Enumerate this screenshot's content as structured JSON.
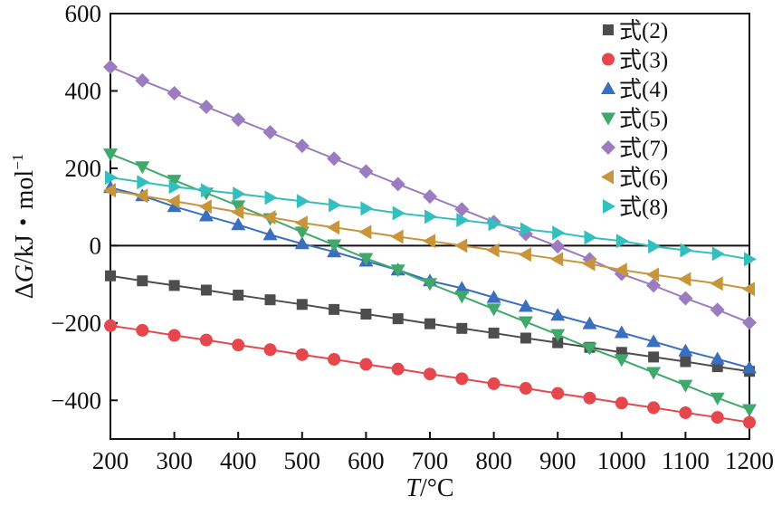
{
  "chart_data": {
    "type": "line",
    "xlabel_italic": "T",
    "xlabel_rest": "/°C",
    "ylabel_prefix": "Δ",
    "ylabel_italic": "G",
    "ylabel_rest": "/kJ・mol",
    "ylabel_sup": "−1",
    "xlim": [
      200,
      1200
    ],
    "ylim": [
      -500,
      600
    ],
    "xticks": [
      200,
      300,
      400,
      500,
      600,
      700,
      800,
      900,
      1000,
      1100,
      1200
    ],
    "yticks": [
      -400,
      -200,
      0,
      200,
      400,
      600
    ],
    "grid": false,
    "legend": "top-right",
    "x": [
      200,
      250,
      300,
      350,
      400,
      450,
      500,
      550,
      600,
      650,
      700,
      750,
      800,
      850,
      900,
      950,
      1000,
      1050,
      1100,
      1150,
      1200
    ],
    "series": [
      {
        "name": "式(2)",
        "marker": "square",
        "color": "#4d4d4d",
        "values": [
          -78,
          -91,
          -103,
          -115,
          -128,
          -140,
          -152,
          -165,
          -177,
          -189,
          -202,
          -214,
          -226,
          -239,
          -251,
          -263,
          -276,
          -288,
          -300,
          -313,
          -325
        ]
      },
      {
        "name": "式(3)",
        "marker": "circle",
        "color": "#e5474d",
        "values": [
          -207,
          -219,
          -232,
          -244,
          -257,
          -269,
          -282,
          -294,
          -307,
          -319,
          -332,
          -344,
          -357,
          -369,
          -382,
          -394,
          -407,
          -419,
          -432,
          -444,
          -457
        ]
      },
      {
        "name": "式(4)",
        "marker": "triangle-up",
        "color": "#3a6fc0",
        "values": [
          150,
          129,
          101,
          77,
          54,
          28,
          5,
          -16,
          -40,
          -63,
          -91,
          -110,
          -134,
          -157,
          -180,
          -202,
          -225,
          -248,
          -272,
          -293,
          -316
        ]
      },
      {
        "name": "式(5)",
        "marker": "triangle-down",
        "color": "#3fa86a",
        "values": [
          237,
          204,
          169,
          136,
          103,
          70,
          35,
          2,
          -33,
          -63,
          -98,
          -131,
          -164,
          -197,
          -230,
          -265,
          -295,
          -328,
          -361,
          -394,
          -424
        ]
      },
      {
        "name": "式(7)",
        "marker": "diamond",
        "color": "#9b7cc0",
        "values": [
          462,
          427,
          394,
          359,
          326,
          293,
          258,
          225,
          192,
          159,
          127,
          94,
          61,
          30,
          -2,
          -35,
          -73,
          -103,
          -136,
          -166,
          -199
        ]
      },
      {
        "name": "式(6)",
        "marker": "triangle-left",
        "color": "#c9953a",
        "values": [
          143,
          129,
          115,
          101,
          87,
          73,
          59,
          47,
          35,
          23,
          12,
          0,
          -12,
          -23,
          -35,
          -47,
          -63,
          -75,
          -87,
          -98,
          -112
        ]
      },
      {
        "name": "式(8)",
        "marker": "triangle-right",
        "color": "#34bfbf",
        "values": [
          176,
          164,
          152,
          143,
          134,
          124,
          115,
          105,
          96,
          84,
          75,
          66,
          56,
          42,
          33,
          21,
          12,
          -2,
          -12,
          -21,
          -35
        ]
      }
    ]
  }
}
